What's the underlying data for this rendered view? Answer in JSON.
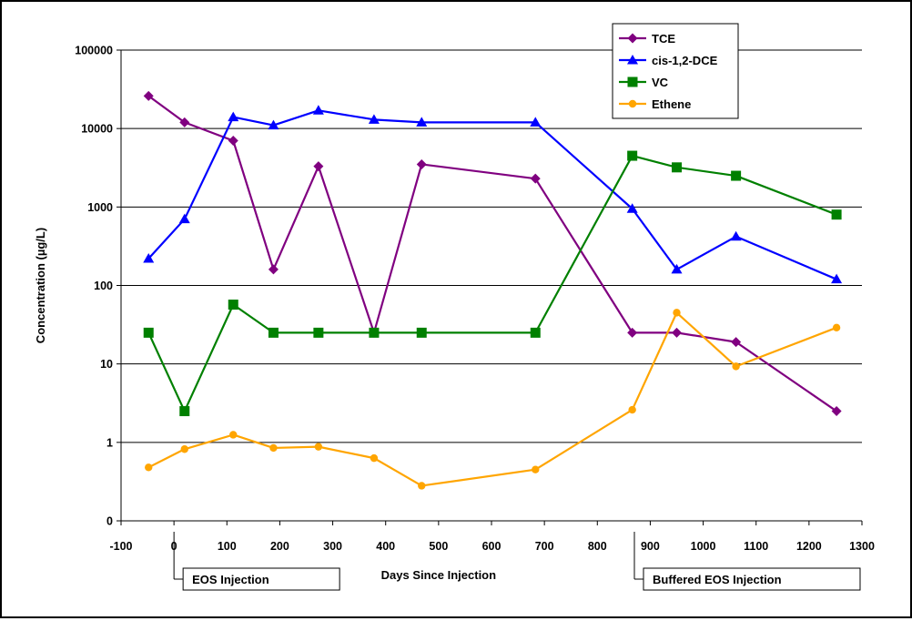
{
  "chart_data": {
    "type": "line",
    "title": "",
    "xlabel": "Days Since Injection",
    "ylabel": "Concentration (µg/L)",
    "x_scale": "linear",
    "y_scale": "log",
    "xlim": [
      -100,
      1300
    ],
    "x_ticks": [
      "-100",
      "0",
      "100",
      "200",
      "300",
      "400",
      "500",
      "600",
      "700",
      "800",
      "900",
      "1000",
      "1100",
      "1200",
      "1300"
    ],
    "y_ticks": [
      "0",
      "1",
      "10",
      "100",
      "1000",
      "10000",
      "100000"
    ],
    "grid": "horizontal",
    "legend_position": "top-right",
    "series": [
      {
        "name": "TCE",
        "color": "#800080",
        "marker": "diamond",
        "x": [
          -48,
          20,
          112,
          188,
          273,
          378,
          468,
          683,
          866,
          950,
          1062,
          1252
        ],
        "y": [
          26000,
          12000,
          7000,
          160,
          3300,
          25,
          3500,
          2300,
          25,
          25,
          19,
          2.5
        ]
      },
      {
        "name": "cis-1,2-DCE",
        "color": "#0000ff",
        "marker": "triangle",
        "x": [
          -48,
          20,
          112,
          188,
          273,
          378,
          468,
          683,
          866,
          950,
          1062,
          1252
        ],
        "y": [
          220,
          700,
          14000,
          11000,
          17000,
          13000,
          12000,
          12000,
          950,
          160,
          420,
          120
        ]
      },
      {
        "name": "VC",
        "color": "#008000",
        "marker": "square",
        "x": [
          -48,
          20,
          112,
          188,
          273,
          378,
          468,
          683,
          866,
          950,
          1062,
          1252
        ],
        "y": [
          25,
          2.5,
          57,
          25,
          25,
          25,
          25,
          25,
          4500,
          3200,
          2500,
          800
        ]
      },
      {
        "name": "Ethene",
        "color": "#ffa500",
        "marker": "circle",
        "x": [
          -48,
          20,
          112,
          188,
          273,
          378,
          468,
          683,
          866,
          950,
          1062,
          1252
        ],
        "y": [
          0.48,
          0.82,
          1.25,
          0.85,
          0.88,
          0.63,
          0.28,
          0.45,
          2.6,
          45,
          9.3,
          29
        ]
      }
    ],
    "annotations": [
      {
        "text": "EOS Injection",
        "x": 0
      },
      {
        "text": "Buffered EOS Injection",
        "x": 870
      }
    ]
  }
}
